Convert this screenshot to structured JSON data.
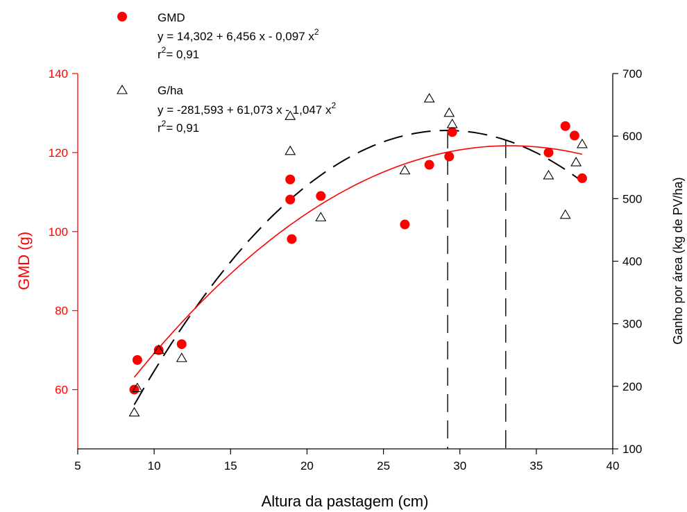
{
  "chart_data": {
    "type": "scatter",
    "xlabel": "Altura da pastagem (cm)",
    "ylabel_left": "GMD (g)",
    "ylabel_right": "Ganho por área (kg de PV/ha)",
    "xlim": [
      5,
      40
    ],
    "ylim_left": [
      45,
      140
    ],
    "ylim_right": [
      100,
      700
    ],
    "xticks": [
      5,
      10,
      15,
      20,
      25,
      30,
      35,
      40
    ],
    "yticks_left": [
      60,
      80,
      100,
      120,
      140
    ],
    "yticks_right": [
      100,
      200,
      300,
      400,
      500,
      600,
      700
    ],
    "grid": false,
    "legend_position": "top-left",
    "colors": {
      "gmd": "#ff0000",
      "gha": "#000000",
      "left_axis": "#ff0000",
      "right_axis": "#000000"
    },
    "series": [
      {
        "name": "GMD",
        "axis": "left",
        "marker": "filled-circle",
        "equation": "y = 14,302 + 6,456 x - 0,097 x",
        "r2": "= 0,91",
        "coef": [
          14.302,
          6.456,
          -0.097
        ],
        "fit_range": [
          8.7,
          38
        ],
        "points": [
          [
            8.7,
            60.0
          ],
          [
            8.9,
            67.5
          ],
          [
            10.3,
            70.0
          ],
          [
            11.8,
            71.5
          ],
          [
            18.9,
            113.2
          ],
          [
            18.9,
            108.1
          ],
          [
            19.0,
            98.1
          ],
          [
            20.9,
            109.0
          ],
          [
            26.4,
            101.8
          ],
          [
            28.0,
            116.9
          ],
          [
            29.3,
            119.0
          ],
          [
            29.5,
            125.2
          ],
          [
            35.8,
            120.0
          ],
          [
            36.9,
            126.7
          ],
          [
            37.5,
            124.3
          ],
          [
            38.0,
            113.5
          ]
        ]
      },
      {
        "name": "G/ha",
        "axis": "right",
        "marker": "open-triangle",
        "equation": "y = -281,593 + 61,073 x - 1,047 x",
        "r2": "= 0,91",
        "coef": [
          -281.593,
          61.073,
          -1.047
        ],
        "fit_range": [
          8.7,
          38
        ],
        "points": [
          [
            8.7,
            158
          ],
          [
            8.9,
            197
          ],
          [
            10.3,
            258
          ],
          [
            11.8,
            245
          ],
          [
            18.9,
            632
          ],
          [
            18.9,
            576
          ],
          [
            20.9,
            470
          ],
          [
            26.4,
            545
          ],
          [
            28.0,
            660
          ],
          [
            29.3,
            637
          ],
          [
            29.5,
            619
          ],
          [
            35.8,
            537
          ],
          [
            36.9,
            474
          ],
          [
            37.6,
            558
          ],
          [
            38.0,
            587
          ]
        ]
      }
    ],
    "vertical_lines_x": [
      29.2,
      33.0
    ],
    "legend": {
      "gmd_name": "GMD",
      "gmd_eq": "y = 14,302 + 6,456 x - 0,097 x",
      "gmd_r2": "= 0,91",
      "gha_name": "G/ha",
      "gha_eq": "y = -281,593 + 61,073 x - 1,047 x",
      "gha_r2": "= 0,91",
      "eq_prefix": "r",
      "sup": "2"
    }
  }
}
